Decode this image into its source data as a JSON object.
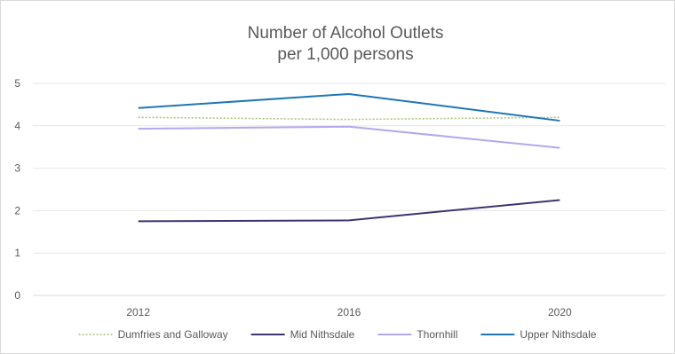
{
  "chart_data": {
    "type": "line",
    "title": [
      "Number of Alcohol Outlets",
      "per 1,000 persons"
    ],
    "xlabel": "",
    "ylabel": "",
    "categories": [
      "2012",
      "2016",
      "2020"
    ],
    "ylim": [
      0,
      5
    ],
    "yticks": [
      "0",
      "1",
      "2",
      "3",
      "4",
      "5"
    ],
    "grid": true,
    "legend_position": "bottom",
    "series": [
      {
        "name": "Dumfries and Galloway",
        "values": [
          4.2,
          4.15,
          4.2
        ],
        "color": "#a9c47f",
        "style": "dotted"
      },
      {
        "name": "Mid Nithsdale",
        "values": [
          1.75,
          1.77,
          2.25
        ],
        "color": "#3f3470",
        "style": "solid"
      },
      {
        "name": "Thornhill",
        "values": [
          3.93,
          3.98,
          3.48
        ],
        "color": "#b4a7ec",
        "style": "solid"
      },
      {
        "name": "Upper Nithsdale",
        "values": [
          4.42,
          4.75,
          4.12
        ],
        "color": "#1f77b4",
        "style": "solid"
      }
    ]
  }
}
